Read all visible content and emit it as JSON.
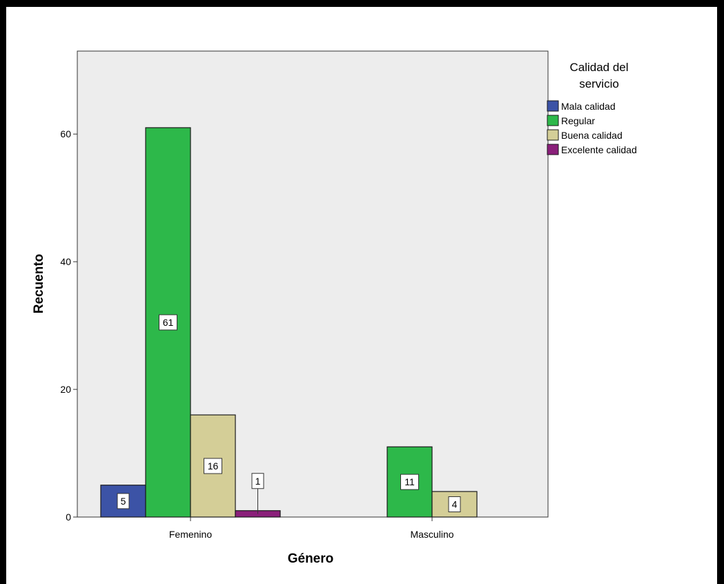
{
  "chart_data": {
    "type": "bar",
    "title": "",
    "xlabel": "Género",
    "ylabel": "Recuento",
    "categories": [
      "Femenino",
      "Masculino"
    ],
    "series": [
      {
        "name": "Mala calidad",
        "color": "#3c53a6",
        "values": [
          5,
          null
        ]
      },
      {
        "name": "Regular",
        "color": "#2db84a",
        "values": [
          61,
          11
        ]
      },
      {
        "name": "Buena calidad",
        "color": "#d4ce97",
        "values": [
          16,
          4
        ]
      },
      {
        "name": "Excelente calidad",
        "color": "#8a1f7a",
        "values": [
          1,
          null
        ]
      }
    ],
    "ylim": [
      0,
      73
    ],
    "yticks": [
      0,
      20,
      40,
      60
    ],
    "legend": {
      "title": "Calidad del servicio",
      "placement": "right"
    },
    "data_labels": true,
    "plot_background": "#ededed",
    "grid": false
  }
}
